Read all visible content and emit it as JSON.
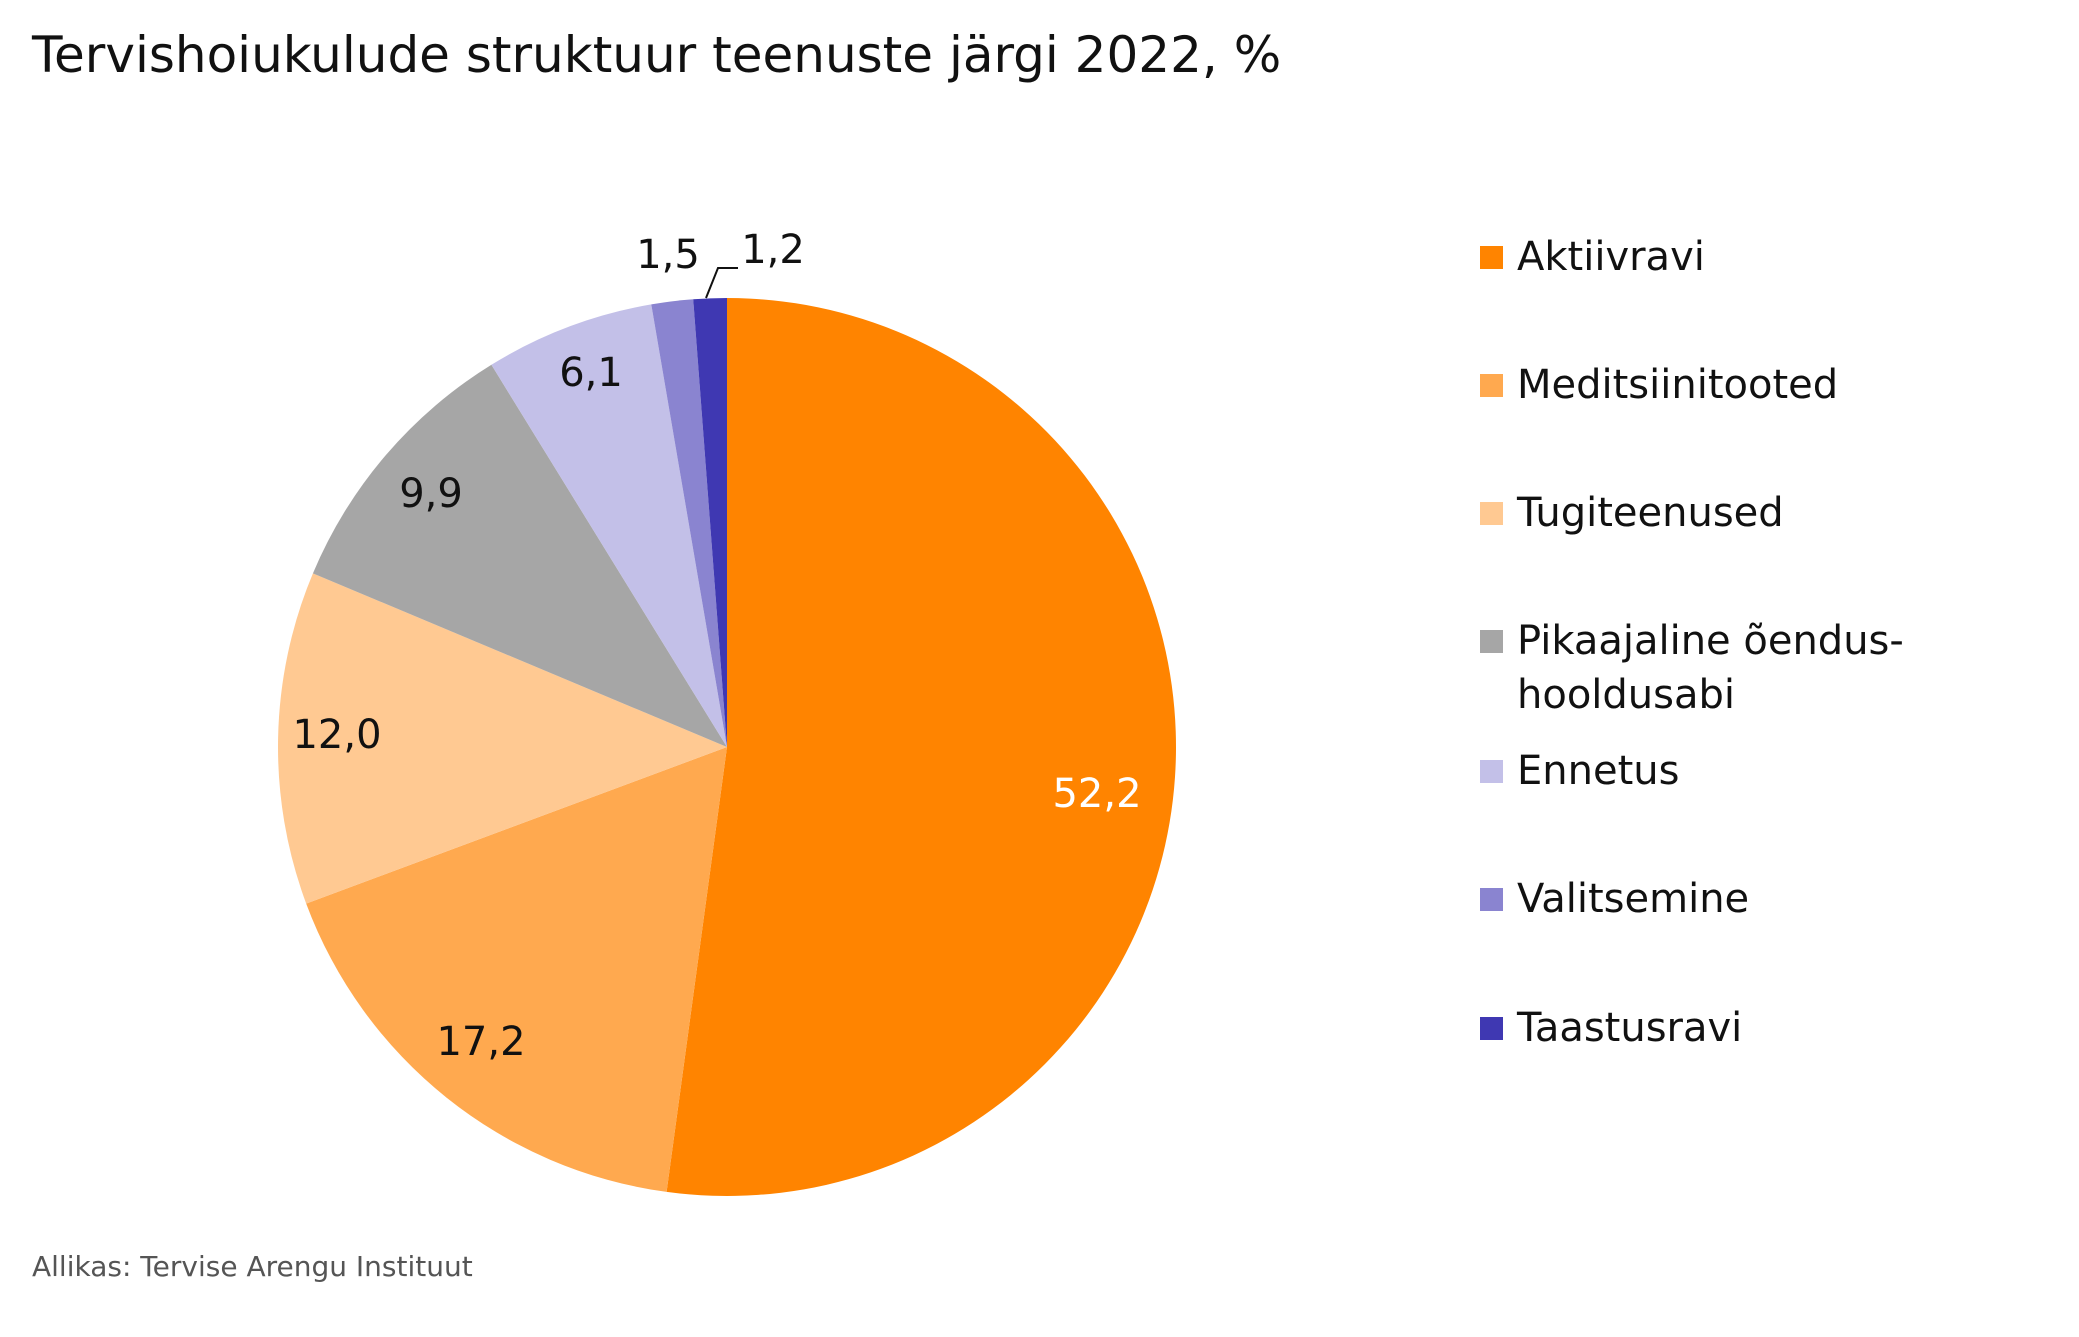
{
  "chart_data": {
    "type": "pie",
    "title": "Tervishoiukulude struktuur teenuste järgi 2022, %",
    "source": "Allikas: Tervise Arengu Instituut",
    "legend_position": "right",
    "slices": [
      {
        "name": "Aktiivravi",
        "value": 52.2,
        "label": "52,2",
        "color": "#FF8400"
      },
      {
        "name": "Meditsiinitooted",
        "value": 17.2,
        "label": "17,2",
        "color": "#FFA94F"
      },
      {
        "name": "Tugiteenused",
        "value": 12.0,
        "label": "12,0",
        "color": "#FFC992"
      },
      {
        "name": "Pikaajaline õendus-hooldusabi",
        "value": 9.9,
        "label": "9,9",
        "color": "#A6A6A6"
      },
      {
        "name": "Ennetus",
        "value": 6.1,
        "label": "6,1",
        "color": "#C3C0E8"
      },
      {
        "name": "Valitsemine",
        "value": 1.5,
        "label": "1,5",
        "color": "#8A84D0"
      },
      {
        "name": "Taastusravi",
        "value": 1.2,
        "label": "1,2",
        "color": "#3F38B2"
      }
    ]
  }
}
